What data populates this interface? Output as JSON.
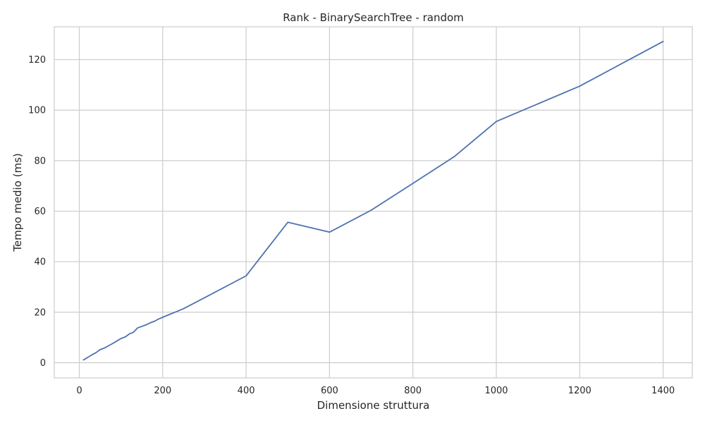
{
  "chart_data": {
    "type": "line",
    "title": "Rank - BinarySearchTree - random",
    "xlabel": "Dimensione struttura",
    "ylabel": "Tempo medio (ms)",
    "xlim": [
      -60,
      1470
    ],
    "ylim": [
      -6,
      133
    ],
    "x_ticks": [
      0,
      200,
      400,
      600,
      800,
      1000,
      1200,
      1400
    ],
    "y_ticks": [
      0,
      20,
      40,
      60,
      80,
      100,
      120
    ],
    "grid": true,
    "line_color": "#4c72b0",
    "series": [
      {
        "x": [
          10,
          20,
          30,
          40,
          50,
          60,
          70,
          80,
          90,
          100,
          110,
          120,
          130,
          140,
          150,
          160,
          170,
          180,
          190,
          200,
          250,
          300,
          400,
          500,
          600,
          700,
          800,
          900,
          1000,
          1200,
          1400
        ],
        "values": [
          1.1,
          2.1,
          3.1,
          4.0,
          5.2,
          5.8,
          6.7,
          7.6,
          8.6,
          9.6,
          10.2,
          11.4,
          12.1,
          13.8,
          14.4,
          15.0,
          15.8,
          16.4,
          17.3,
          18.0,
          21.4,
          25.7,
          34.4,
          55.6,
          51.7,
          60.4,
          71.0,
          81.7,
          95.5,
          109.5,
          127.2
        ]
      }
    ]
  }
}
